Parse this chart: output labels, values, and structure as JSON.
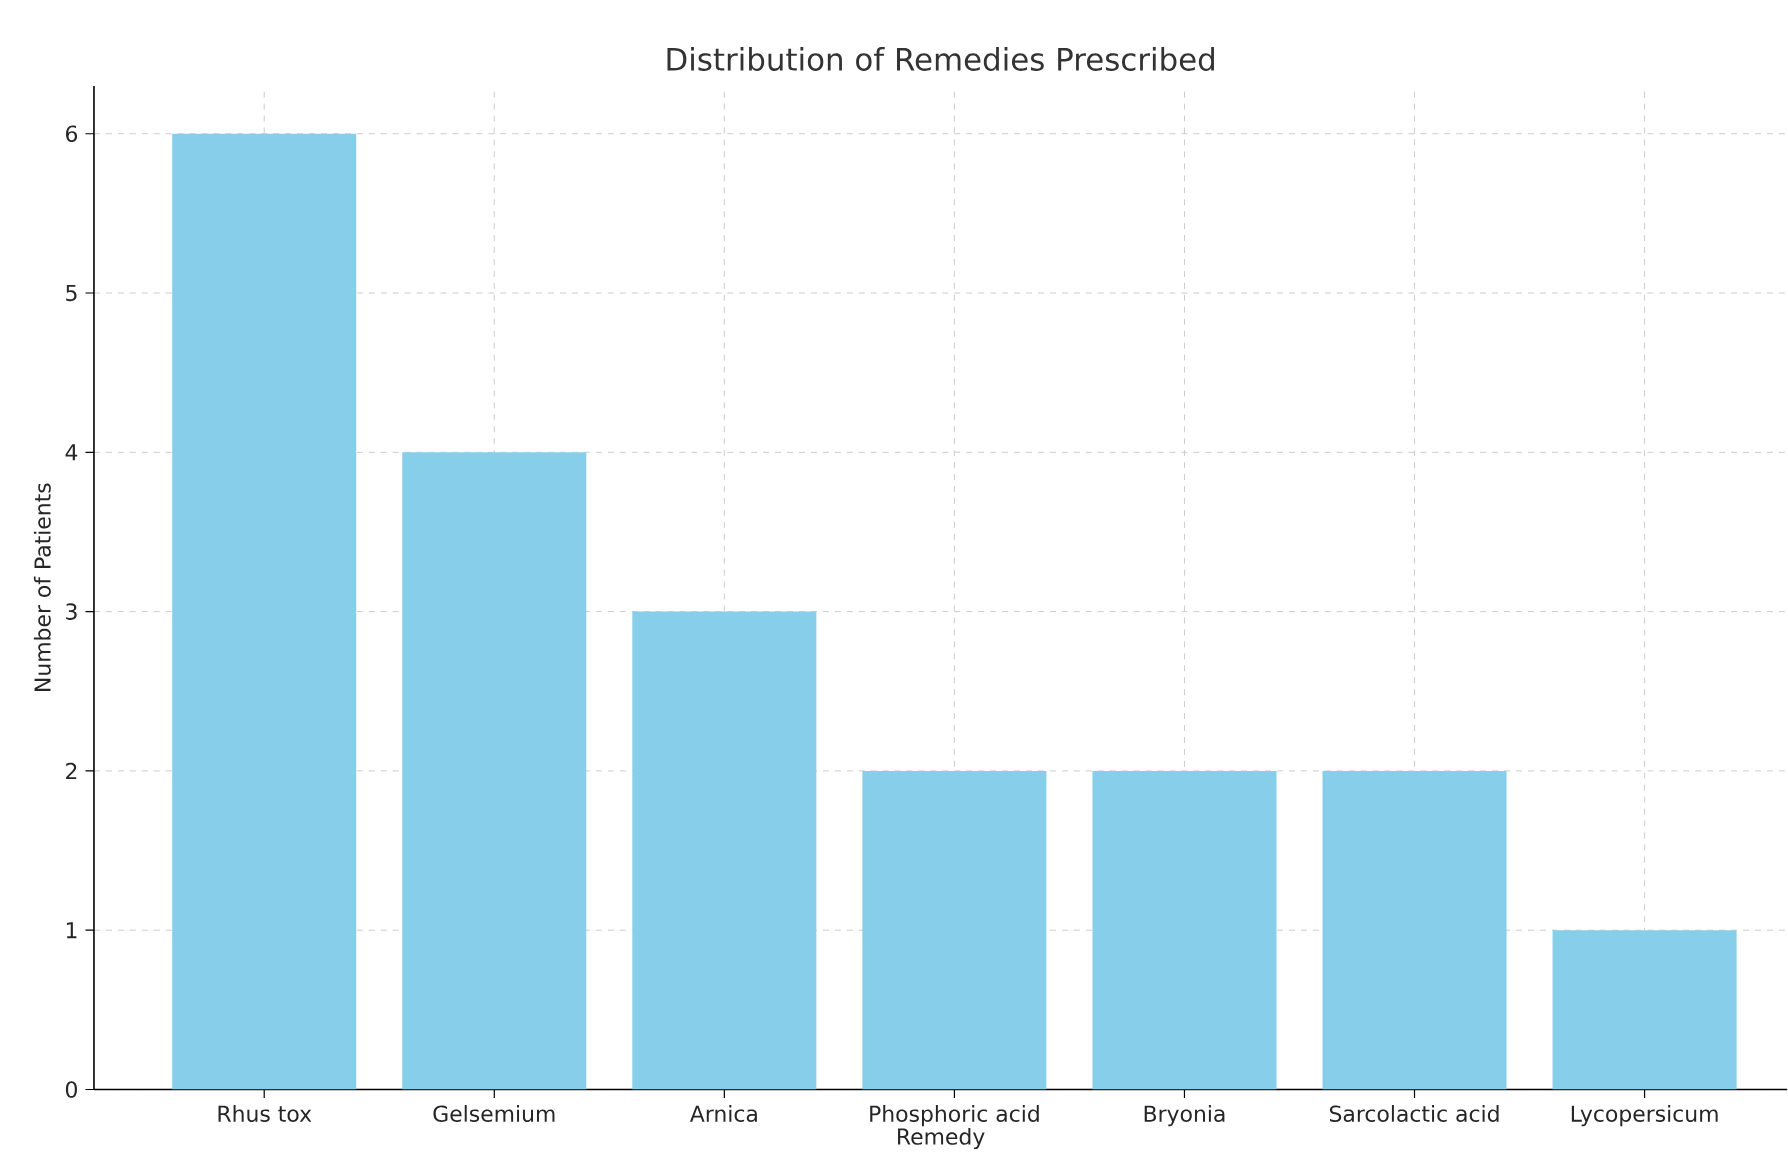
{
  "chart_data": {
    "type": "bar",
    "title": "Distribution of Remedies Prescribed",
    "xlabel": "Remedy",
    "ylabel": "Number of Patients",
    "categories": [
      "Rhus tox",
      "Gelsemium",
      "Arnica",
      "Phosphoric acid",
      "Bryonia",
      "Sarcolactic acid",
      "Lycopersicum"
    ],
    "values": [
      6,
      4,
      3,
      2,
      2,
      2,
      1
    ],
    "color": "#87ceeb",
    "ylim": [
      0,
      6.3
    ],
    "yticks": [
      0,
      1,
      2,
      3,
      4,
      5,
      6
    ],
    "grid": true
  }
}
